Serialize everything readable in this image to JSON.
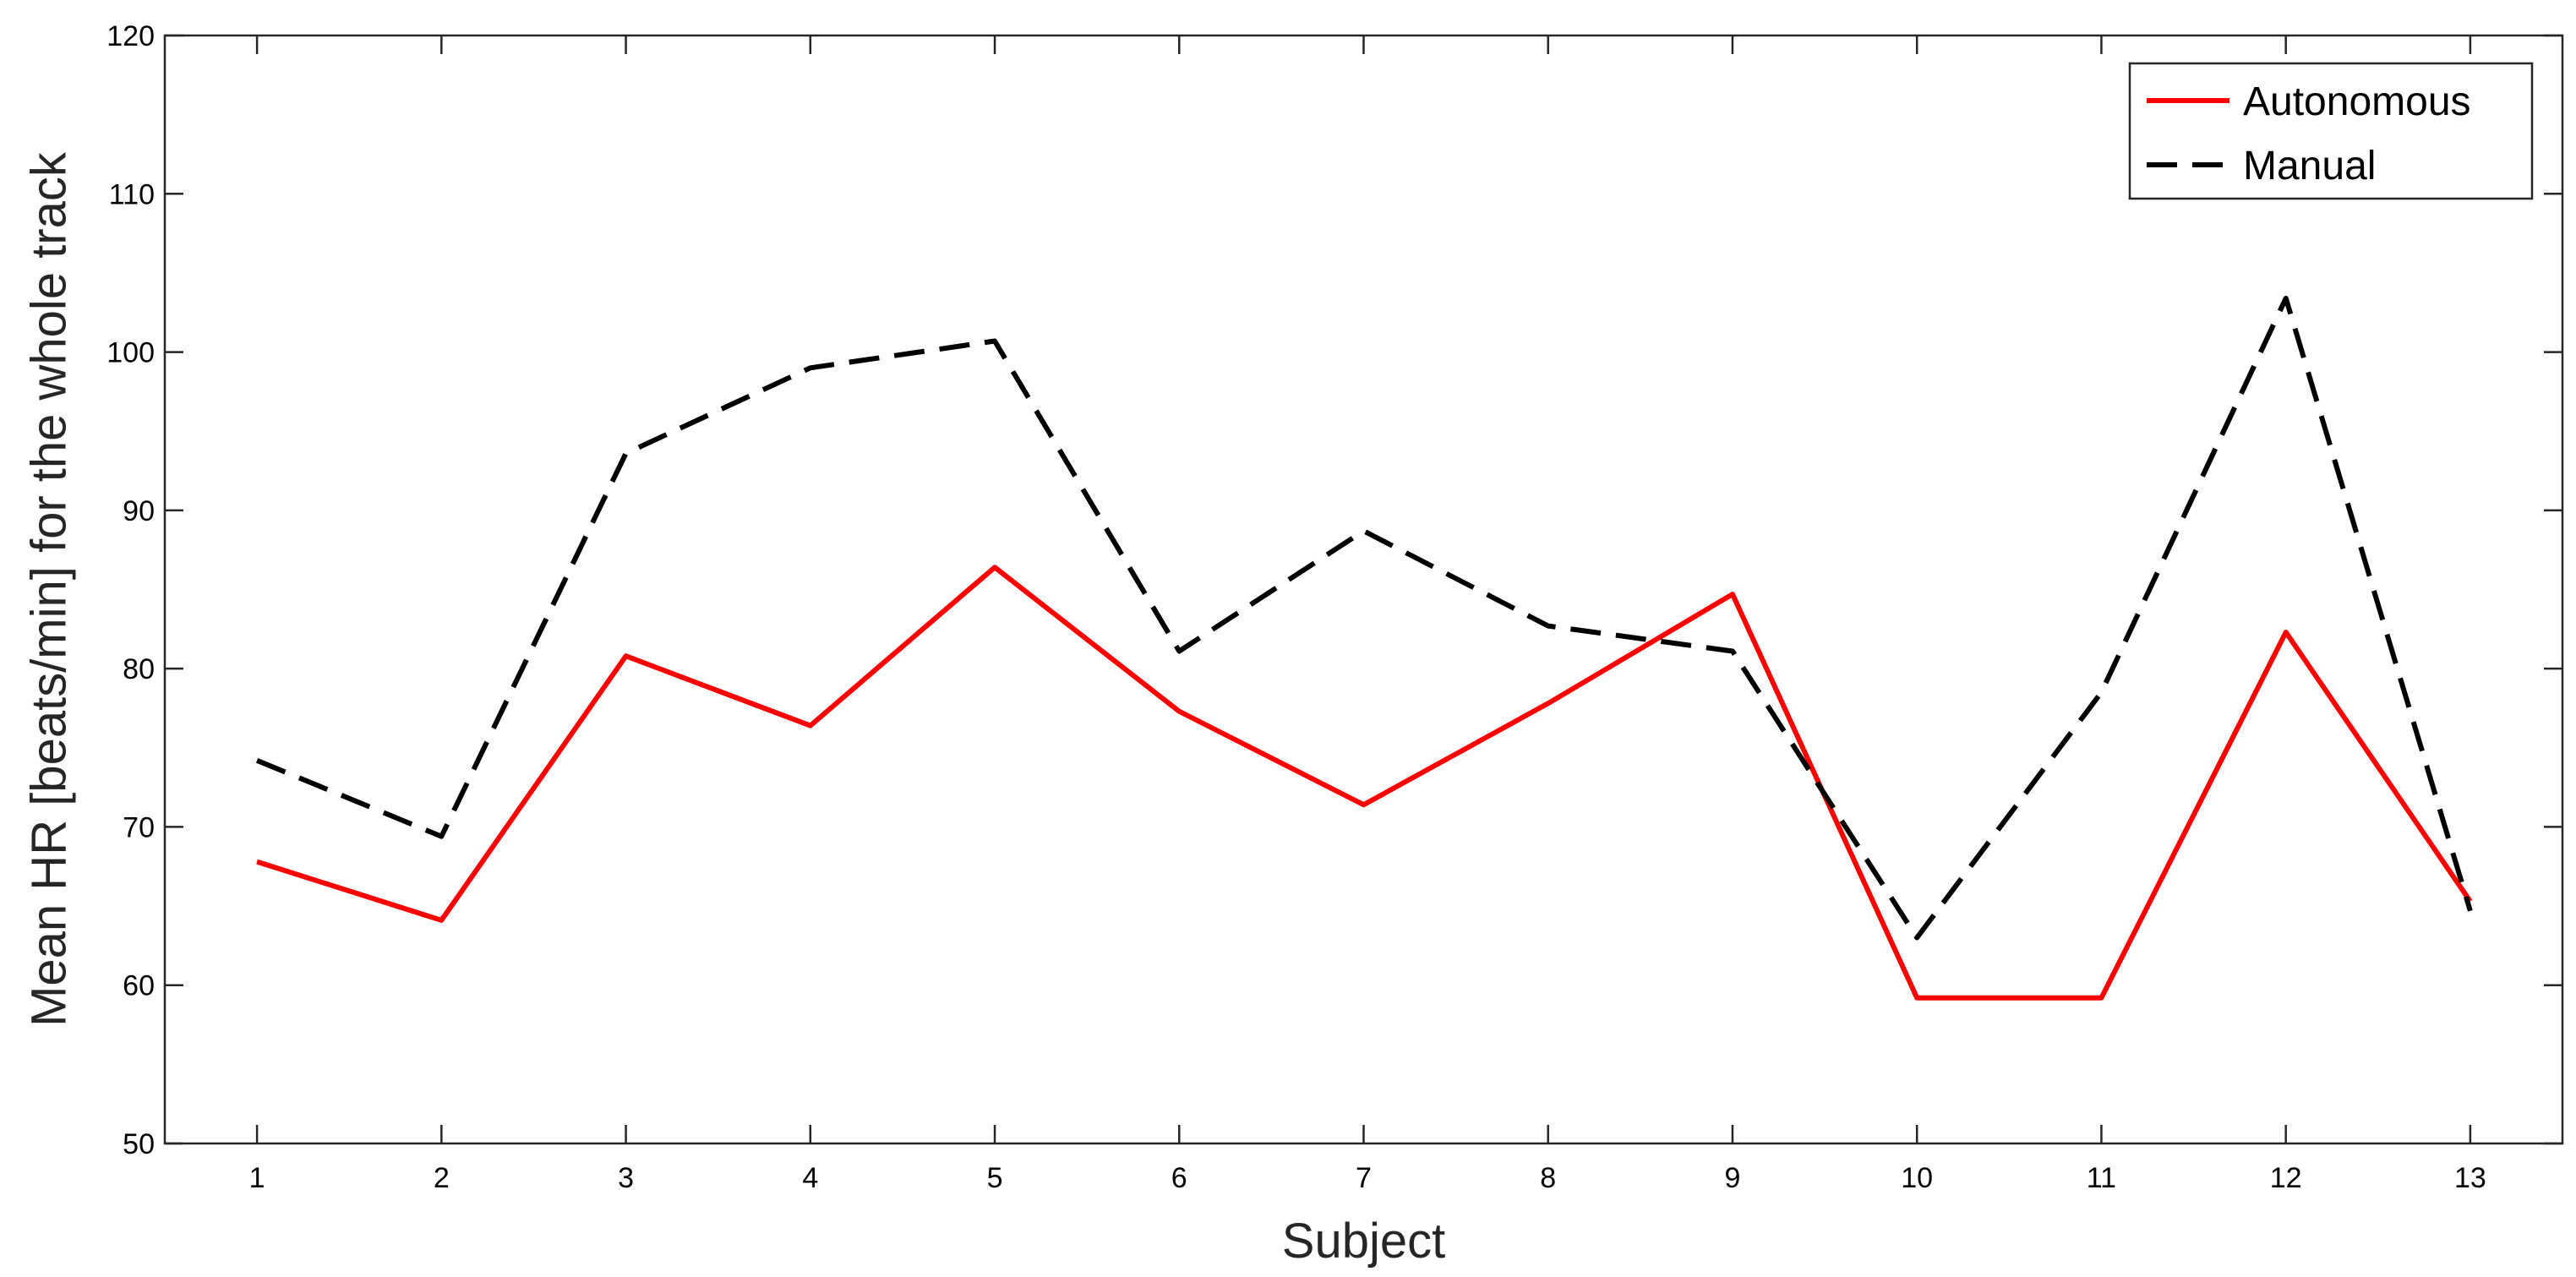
{
  "chart_data": {
    "type": "line",
    "title": "",
    "xlabel": "Subject",
    "ylabel": "Mean HR [beats/min] for the whole track",
    "x": [
      1,
      2,
      3,
      4,
      5,
      6,
      7,
      8,
      9,
      10,
      11,
      12,
      13
    ],
    "xlim": [
      0.5,
      13.5
    ],
    "ylim": [
      50,
      120
    ],
    "xticks": [
      1,
      2,
      3,
      4,
      5,
      6,
      7,
      8,
      9,
      10,
      11,
      12,
      13
    ],
    "yticks": [
      50,
      60,
      70,
      80,
      90,
      100,
      110,
      120
    ],
    "grid": false,
    "legend_position": "top-right",
    "series": [
      {
        "name": "Autonomous",
        "color": "#ff0000",
        "line_style": "solid",
        "values": [
          67.8,
          64.1,
          80.8,
          76.4,
          86.4,
          77.3,
          71.4,
          77.8,
          84.7,
          59.2,
          59.2,
          82.3,
          65.3
        ]
      },
      {
        "name": "Manual",
        "color": "#000000",
        "line_style": "dashed",
        "values": [
          74.2,
          69.4,
          93.6,
          99.0,
          100.7,
          81.1,
          88.7,
          82.7,
          81.1,
          63.0,
          78.5,
          103.4,
          64.7
        ]
      }
    ]
  }
}
